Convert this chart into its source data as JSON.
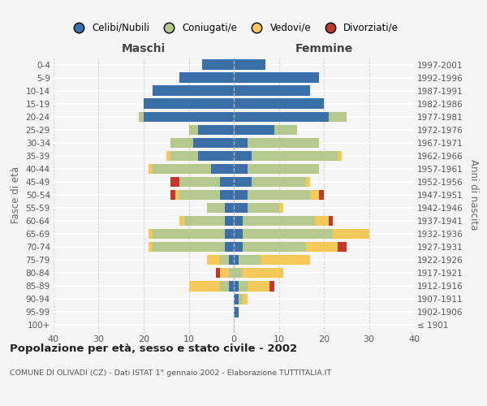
{
  "age_groups": [
    "100+",
    "95-99",
    "90-94",
    "85-89",
    "80-84",
    "75-79",
    "70-74",
    "65-69",
    "60-64",
    "55-59",
    "50-54",
    "45-49",
    "40-44",
    "35-39",
    "30-34",
    "25-29",
    "20-24",
    "15-19",
    "10-14",
    "5-9",
    "0-4"
  ],
  "birth_years": [
    "≤ 1901",
    "1902-1906",
    "1907-1911",
    "1912-1916",
    "1917-1921",
    "1922-1926",
    "1927-1931",
    "1932-1936",
    "1937-1941",
    "1942-1946",
    "1947-1951",
    "1952-1956",
    "1957-1961",
    "1962-1966",
    "1967-1971",
    "1972-1976",
    "1977-1981",
    "1982-1986",
    "1987-1991",
    "1992-1996",
    "1997-2001"
  ],
  "colors": {
    "celibi": "#3a6fa8",
    "coniugati": "#b5c98e",
    "vedovi": "#f5c85a",
    "divorziati": "#c0392b"
  },
  "maschi": {
    "celibi": [
      0,
      0,
      0,
      1,
      0,
      1,
      2,
      2,
      2,
      2,
      3,
      3,
      5,
      8,
      9,
      8,
      20,
      20,
      18,
      12,
      7
    ],
    "coniugati": [
      0,
      0,
      0,
      2,
      1,
      2,
      16,
      16,
      9,
      4,
      9,
      9,
      13,
      6,
      5,
      2,
      1,
      0,
      0,
      0,
      0
    ],
    "vedovi": [
      0,
      0,
      0,
      7,
      2,
      3,
      1,
      1,
      1,
      0,
      1,
      0,
      1,
      1,
      0,
      0,
      0,
      0,
      0,
      0,
      0
    ],
    "divorziati": [
      0,
      0,
      0,
      0,
      1,
      0,
      0,
      0,
      0,
      0,
      1,
      2,
      0,
      0,
      0,
      0,
      0,
      0,
      0,
      0,
      0
    ]
  },
  "femmine": {
    "celibi": [
      0,
      1,
      1,
      1,
      0,
      1,
      2,
      2,
      2,
      3,
      3,
      4,
      3,
      4,
      3,
      9,
      21,
      20,
      17,
      19,
      7
    ],
    "coniugati": [
      0,
      0,
      1,
      2,
      2,
      5,
      14,
      20,
      16,
      7,
      14,
      12,
      16,
      19,
      16,
      5,
      4,
      0,
      0,
      0,
      0
    ],
    "vedovi": [
      0,
      0,
      1,
      5,
      9,
      11,
      7,
      8,
      3,
      1,
      2,
      1,
      0,
      1,
      0,
      0,
      0,
      0,
      0,
      0,
      0
    ],
    "divorziati": [
      0,
      0,
      0,
      1,
      0,
      0,
      2,
      0,
      1,
      0,
      1,
      0,
      0,
      0,
      0,
      0,
      0,
      0,
      0,
      0,
      0
    ]
  },
  "xlim": 40,
  "title": "Popolazione per età, sesso e stato civile - 2002",
  "subtitle": "COMUNE DI OLIVADI (CZ) - Dati ISTAT 1° gennaio 2002 - Elaborazione TUTTITALIA.IT",
  "ylabel_left": "Fasce di età",
  "ylabel_right": "Anni di nascita",
  "xlabel_maschi": "Maschi",
  "xlabel_femmine": "Femmine",
  "legend_labels": [
    "Celibi/Nubili",
    "Coniugati/e",
    "Vedovi/e",
    "Divorziati/e"
  ],
  "background_color": "#f5f5f5"
}
